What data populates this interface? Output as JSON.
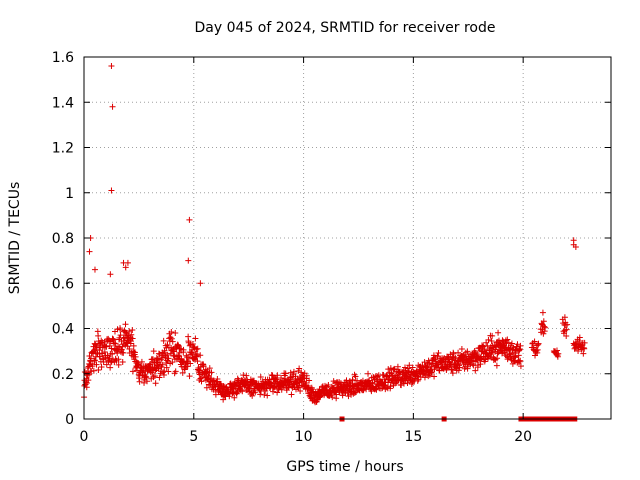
{
  "chart_data": {
    "type": "scatter",
    "title": "Day 045 of 2024, SRMTID for receiver rode",
    "xlabel": "GPS time / hours",
    "ylabel": "SRMTID / TECUs",
    "xlim": [
      0,
      24
    ],
    "ylim": [
      0,
      1.6
    ],
    "xticks": [
      0,
      5,
      10,
      15,
      20
    ],
    "xtick_labels": [
      "0",
      "5",
      "10",
      "15",
      "20"
    ],
    "yticks": [
      0,
      0.2,
      0.4,
      0.6,
      0.8,
      1.0,
      1.2,
      1.4,
      1.6
    ],
    "ytick_labels": [
      "0",
      "0.2",
      "0.4",
      "0.6",
      "0.8",
      "1",
      "1.2",
      "1.4",
      "1.6"
    ],
    "grid": true,
    "marker": "plus",
    "color": "#dd0000",
    "outliers": [
      {
        "x": 1.25,
        "y": 1.56
      },
      {
        "x": 1.3,
        "y": 1.38
      },
      {
        "x": 1.25,
        "y": 1.01
      },
      {
        "x": 4.8,
        "y": 0.88
      },
      {
        "x": 4.75,
        "y": 0.7
      },
      {
        "x": 0.3,
        "y": 0.8
      },
      {
        "x": 0.25,
        "y": 0.74
      },
      {
        "x": 22.3,
        "y": 0.79
      },
      {
        "x": 22.3,
        "y": 0.77
      },
      {
        "x": 22.4,
        "y": 0.76
      },
      {
        "x": 1.8,
        "y": 0.69
      },
      {
        "x": 1.9,
        "y": 0.67
      },
      {
        "x": 2.0,
        "y": 0.69
      },
      {
        "x": 1.2,
        "y": 0.64
      },
      {
        "x": 0.5,
        "y": 0.66
      },
      {
        "x": 5.3,
        "y": 0.6
      },
      {
        "x": 20.9,
        "y": 0.47
      },
      {
        "x": 21.9,
        "y": 0.45
      }
    ],
    "envelope": {
      "hours": [
        0,
        0.5,
        1,
        1.5,
        2,
        2.5,
        3,
        3.5,
        4,
        4.5,
        5,
        5.5,
        6,
        6.5,
        7,
        8,
        9,
        10,
        10.5,
        11,
        12,
        13,
        14,
        15,
        16,
        17,
        18,
        19,
        19.9
      ],
      "center": [
        0.15,
        0.3,
        0.3,
        0.3,
        0.38,
        0.2,
        0.22,
        0.25,
        0.32,
        0.25,
        0.28,
        0.2,
        0.15,
        0.12,
        0.15,
        0.14,
        0.16,
        0.17,
        0.1,
        0.12,
        0.14,
        0.15,
        0.18,
        0.2,
        0.24,
        0.25,
        0.28,
        0.32,
        0.28
      ],
      "spread": [
        0.07,
        0.12,
        0.1,
        0.12,
        0.12,
        0.08,
        0.08,
        0.1,
        0.12,
        0.1,
        0.12,
        0.08,
        0.06,
        0.05,
        0.06,
        0.06,
        0.06,
        0.07,
        0.05,
        0.05,
        0.06,
        0.06,
        0.06,
        0.07,
        0.07,
        0.07,
        0.08,
        0.09,
        0.08
      ]
    },
    "late_clusters": [
      {
        "x": [
          20.4,
          20.7
        ],
        "y": 0.32,
        "spread": 0.06
      },
      {
        "x": [
          20.8,
          21.0
        ],
        "y": 0.4,
        "spread": 0.04
      },
      {
        "x": [
          21.4,
          21.6
        ],
        "y": 0.29,
        "spread": 0.02
      },
      {
        "x": [
          21.8,
          22.0
        ],
        "y": 0.4,
        "spread": 0.05
      },
      {
        "x": [
          22.3,
          22.8
        ],
        "y": 0.32,
        "spread": 0.05
      }
    ],
    "zero_values_x": [
      11.75,
      16.4,
      19.9,
      20.05,
      20.2,
      20.35,
      20.55,
      20.75,
      20.95,
      21.15,
      21.35,
      21.55,
      21.75,
      21.95,
      22.15,
      22.35
    ]
  }
}
